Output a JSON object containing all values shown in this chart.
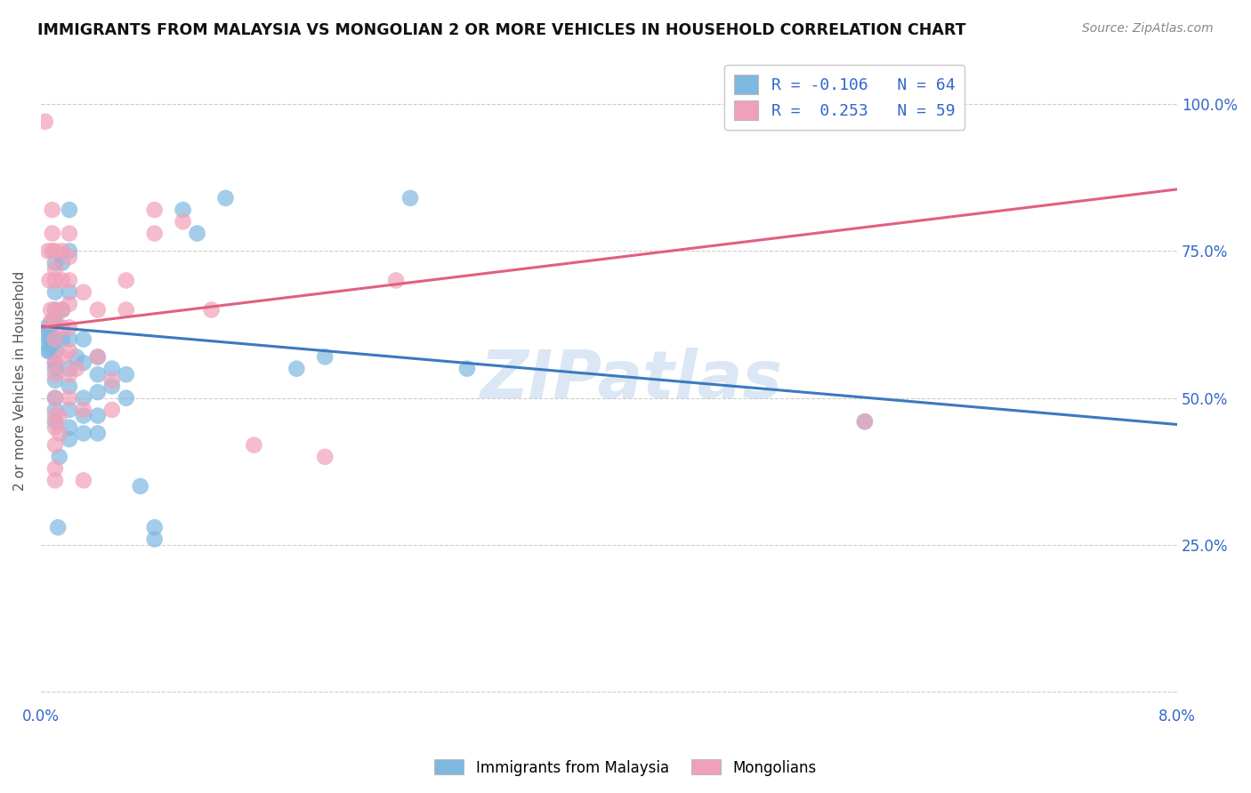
{
  "title": "IMMIGRANTS FROM MALAYSIA VS MONGOLIAN 2 OR MORE VEHICLES IN HOUSEHOLD CORRELATION CHART",
  "source": "Source: ZipAtlas.com",
  "ylabel": "2 or more Vehicles in Household",
  "ytick_labels": [
    "",
    "25.0%",
    "50.0%",
    "75.0%",
    "100.0%"
  ],
  "ytick_positions": [
    0.0,
    0.25,
    0.5,
    0.75,
    1.0
  ],
  "xlim": [
    0.0,
    0.08
  ],
  "ylim": [
    -0.02,
    1.08
  ],
  "legend_label1": "Immigrants from Malaysia",
  "legend_label2": "Mongolians",
  "blue_color": "#7eb8e0",
  "pink_color": "#f0a0b8",
  "blue_line_color": "#3a7abf",
  "pink_line_color": "#e06080",
  "watermark": "ZIPatlas",
  "blue_line_x0": 0.0,
  "blue_line_y0": 0.622,
  "blue_line_x1": 0.08,
  "blue_line_y1": 0.455,
  "pink_line_x0": 0.0,
  "pink_line_y0": 0.62,
  "pink_line_x1": 0.08,
  "pink_line_y1": 0.855,
  "blue_scatter": [
    [
      0.0003,
      0.595
    ],
    [
      0.0004,
      0.62
    ],
    [
      0.0005,
      0.58
    ],
    [
      0.0005,
      0.615
    ],
    [
      0.0006,
      0.6
    ],
    [
      0.0006,
      0.58
    ],
    [
      0.0007,
      0.62
    ],
    [
      0.0007,
      0.6
    ],
    [
      0.0008,
      0.63
    ],
    [
      0.0008,
      0.59
    ],
    [
      0.001,
      0.73
    ],
    [
      0.001,
      0.68
    ],
    [
      0.001,
      0.65
    ],
    [
      0.001,
      0.63
    ],
    [
      0.001,
      0.6
    ],
    [
      0.001,
      0.58
    ],
    [
      0.001,
      0.56
    ],
    [
      0.001,
      0.55
    ],
    [
      0.001,
      0.53
    ],
    [
      0.001,
      0.5
    ],
    [
      0.001,
      0.48
    ],
    [
      0.001,
      0.46
    ],
    [
      0.0012,
      0.28
    ],
    [
      0.0013,
      0.4
    ],
    [
      0.0015,
      0.73
    ],
    [
      0.0015,
      0.65
    ],
    [
      0.0015,
      0.6
    ],
    [
      0.002,
      0.82
    ],
    [
      0.002,
      0.75
    ],
    [
      0.002,
      0.68
    ],
    [
      0.002,
      0.6
    ],
    [
      0.002,
      0.55
    ],
    [
      0.002,
      0.52
    ],
    [
      0.002,
      0.48
    ],
    [
      0.002,
      0.45
    ],
    [
      0.002,
      0.43
    ],
    [
      0.0025,
      0.57
    ],
    [
      0.003,
      0.6
    ],
    [
      0.003,
      0.56
    ],
    [
      0.003,
      0.5
    ],
    [
      0.003,
      0.47
    ],
    [
      0.003,
      0.44
    ],
    [
      0.004,
      0.57
    ],
    [
      0.004,
      0.54
    ],
    [
      0.004,
      0.51
    ],
    [
      0.004,
      0.47
    ],
    [
      0.004,
      0.44
    ],
    [
      0.005,
      0.55
    ],
    [
      0.005,
      0.52
    ],
    [
      0.006,
      0.54
    ],
    [
      0.006,
      0.5
    ],
    [
      0.007,
      0.35
    ],
    [
      0.008,
      0.28
    ],
    [
      0.008,
      0.26
    ],
    [
      0.01,
      0.82
    ],
    [
      0.011,
      0.78
    ],
    [
      0.013,
      0.84
    ],
    [
      0.018,
      0.55
    ],
    [
      0.02,
      0.57
    ],
    [
      0.026,
      0.84
    ],
    [
      0.03,
      0.55
    ],
    [
      0.058,
      0.46
    ]
  ],
  "pink_scatter": [
    [
      0.0003,
      0.97
    ],
    [
      0.0005,
      0.75
    ],
    [
      0.0006,
      0.7
    ],
    [
      0.0007,
      0.65
    ],
    [
      0.0007,
      0.63
    ],
    [
      0.0008,
      0.82
    ],
    [
      0.0008,
      0.78
    ],
    [
      0.0008,
      0.75
    ],
    [
      0.001,
      0.75
    ],
    [
      0.001,
      0.72
    ],
    [
      0.001,
      0.7
    ],
    [
      0.001,
      0.65
    ],
    [
      0.001,
      0.63
    ],
    [
      0.001,
      0.6
    ],
    [
      0.001,
      0.56
    ],
    [
      0.001,
      0.54
    ],
    [
      0.001,
      0.5
    ],
    [
      0.001,
      0.47
    ],
    [
      0.001,
      0.45
    ],
    [
      0.001,
      0.42
    ],
    [
      0.001,
      0.38
    ],
    [
      0.001,
      0.36
    ],
    [
      0.0013,
      0.47
    ],
    [
      0.0013,
      0.44
    ],
    [
      0.0015,
      0.75
    ],
    [
      0.0015,
      0.7
    ],
    [
      0.0015,
      0.65
    ],
    [
      0.0015,
      0.62
    ],
    [
      0.0015,
      0.57
    ],
    [
      0.002,
      0.78
    ],
    [
      0.002,
      0.74
    ],
    [
      0.002,
      0.7
    ],
    [
      0.002,
      0.66
    ],
    [
      0.002,
      0.62
    ],
    [
      0.002,
      0.58
    ],
    [
      0.002,
      0.54
    ],
    [
      0.002,
      0.5
    ],
    [
      0.0025,
      0.55
    ],
    [
      0.003,
      0.68
    ],
    [
      0.003,
      0.48
    ],
    [
      0.003,
      0.36
    ],
    [
      0.004,
      0.65
    ],
    [
      0.004,
      0.57
    ],
    [
      0.005,
      0.53
    ],
    [
      0.005,
      0.48
    ],
    [
      0.006,
      0.7
    ],
    [
      0.006,
      0.65
    ],
    [
      0.008,
      0.82
    ],
    [
      0.008,
      0.78
    ],
    [
      0.01,
      0.8
    ],
    [
      0.012,
      0.65
    ],
    [
      0.015,
      0.42
    ],
    [
      0.02,
      0.4
    ],
    [
      0.025,
      0.7
    ],
    [
      0.058,
      0.46
    ]
  ]
}
